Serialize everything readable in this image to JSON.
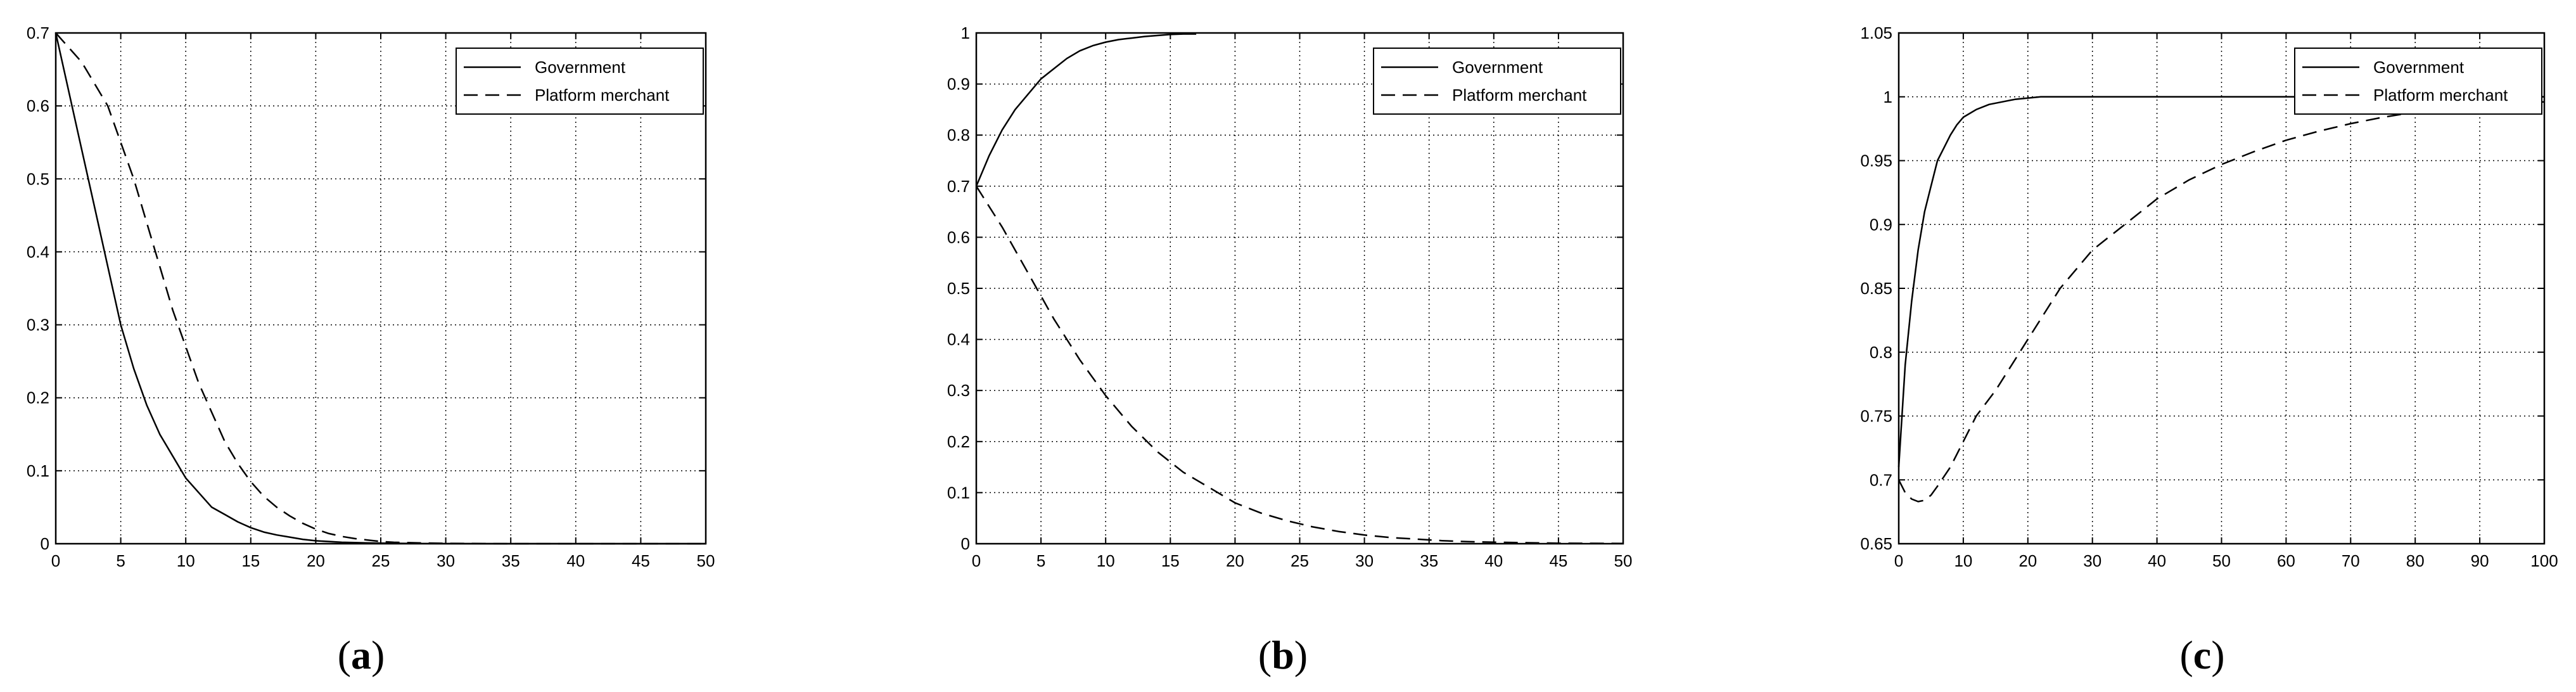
{
  "figure": {
    "panel_labels": [
      "a",
      "b",
      "c"
    ]
  },
  "chart_data": [
    {
      "type": "line",
      "panel": "a",
      "title": "",
      "xlabel": "",
      "ylabel": "",
      "xlim": [
        0,
        50
      ],
      "ylim": [
        0,
        0.7
      ],
      "xticks": [
        0,
        5,
        10,
        15,
        20,
        25,
        30,
        35,
        40,
        45,
        50
      ],
      "yticks": [
        0,
        0.1,
        0.2,
        0.3,
        0.4,
        0.5,
        0.6,
        0.7
      ],
      "xtick_labels": [
        "0",
        "5",
        "10",
        "15",
        "20",
        "25",
        "30",
        "35",
        "40",
        "45",
        "50"
      ],
      "ytick_labels": [
        "0",
        "0.1",
        "0.2",
        "0.3",
        "0.4",
        "0.5",
        "0.6",
        "0.7"
      ],
      "grid": true,
      "legend_position": "top-right",
      "series": [
        {
          "name": "Government",
          "style": "solid",
          "x": [
            0,
            1,
            2,
            3,
            4,
            5,
            6,
            7,
            8,
            9,
            10,
            11,
            12,
            13,
            14,
            15,
            16,
            17,
            18,
            19,
            20,
            22,
            24,
            26,
            28,
            30,
            35,
            40,
            45,
            50
          ],
          "y": [
            0.7,
            0.62,
            0.54,
            0.46,
            0.38,
            0.3,
            0.24,
            0.19,
            0.15,
            0.12,
            0.09,
            0.07,
            0.05,
            0.04,
            0.03,
            0.022,
            0.016,
            0.012,
            0.009,
            0.006,
            0.004,
            0.002,
            0.001,
            0.0005,
            0.0002,
            0.0001,
            0,
            0,
            0,
            0
          ]
        },
        {
          "name": "Platform merchant",
          "style": "dashed",
          "x": [
            0,
            1,
            2,
            3,
            4,
            5,
            6,
            7,
            8,
            9,
            10,
            11,
            12,
            13,
            14,
            15,
            16,
            17,
            18,
            19,
            20,
            21,
            22,
            23,
            24,
            25,
            26,
            28,
            30,
            35,
            40,
            45,
            50
          ],
          "y": [
            0.7,
            0.68,
            0.66,
            0.63,
            0.6,
            0.55,
            0.5,
            0.44,
            0.38,
            0.32,
            0.27,
            0.22,
            0.18,
            0.14,
            0.11,
            0.085,
            0.065,
            0.05,
            0.038,
            0.028,
            0.02,
            0.014,
            0.01,
            0.007,
            0.005,
            0.003,
            0.002,
            0.001,
            0.0005,
            0,
            0,
            0,
            0
          ]
        }
      ]
    },
    {
      "type": "line",
      "panel": "b",
      "title": "",
      "xlabel": "",
      "ylabel": "",
      "xlim": [
        0,
        50
      ],
      "ylim": [
        0,
        1
      ],
      "xticks": [
        0,
        5,
        10,
        15,
        20,
        25,
        30,
        35,
        40,
        45,
        50
      ],
      "yticks": [
        0,
        0.1,
        0.2,
        0.3,
        0.4,
        0.5,
        0.6,
        0.7,
        0.8,
        0.9,
        1
      ],
      "xtick_labels": [
        "0",
        "5",
        "10",
        "15",
        "20",
        "25",
        "30",
        "35",
        "40",
        "45",
        "50"
      ],
      "ytick_labels": [
        "0",
        "0.1",
        "0.2",
        "0.3",
        "0.4",
        "0.5",
        "0.6",
        "0.7",
        "0.8",
        "0.9",
        "1"
      ],
      "grid": true,
      "legend_position": "top-right",
      "series": [
        {
          "name": "Government",
          "style": "solid",
          "x": [
            0,
            1,
            2,
            3,
            4,
            5,
            6,
            7,
            8,
            9,
            10,
            11,
            12,
            13,
            14,
            15,
            16,
            17
          ],
          "y": [
            0.7,
            0.76,
            0.81,
            0.85,
            0.88,
            0.91,
            0.93,
            0.95,
            0.965,
            0.975,
            0.982,
            0.987,
            0.99,
            0.993,
            0.995,
            0.997,
            0.998,
            0.998
          ]
        },
        {
          "name": "Platform merchant",
          "style": "dashed",
          "x": [
            0,
            2,
            4,
            6,
            8,
            10,
            12,
            14,
            16,
            18,
            20,
            22,
            24,
            26,
            28,
            30,
            32,
            34,
            36,
            38,
            40,
            45,
            50
          ],
          "y": [
            0.7,
            0.62,
            0.53,
            0.44,
            0.36,
            0.29,
            0.23,
            0.18,
            0.14,
            0.11,
            0.08,
            0.06,
            0.045,
            0.033,
            0.024,
            0.017,
            0.012,
            0.009,
            0.006,
            0.004,
            0.003,
            0.001,
            0.0005
          ]
        }
      ]
    },
    {
      "type": "line",
      "panel": "c",
      "title": "",
      "xlabel": "",
      "ylabel": "",
      "xlim": [
        0,
        100
      ],
      "ylim": [
        0.65,
        1.05
      ],
      "xticks": [
        0,
        10,
        20,
        30,
        40,
        50,
        60,
        70,
        80,
        90,
        100
      ],
      "yticks": [
        0.65,
        0.7,
        0.75,
        0.8,
        0.85,
        0.9,
        0.95,
        1,
        1.05
      ],
      "xtick_labels": [
        "0",
        "10",
        "20",
        "30",
        "40",
        "50",
        "60",
        "70",
        "80",
        "90",
        "100"
      ],
      "ytick_labels": [
        "0.65",
        "0.7",
        "0.75",
        "0.8",
        "0.85",
        "0.9",
        "0.95",
        "1",
        "1.05"
      ],
      "grid": true,
      "legend_position": "top-right",
      "series": [
        {
          "name": "Government",
          "style": "solid",
          "x": [
            0,
            1,
            2,
            3,
            4,
            5,
            6,
            7,
            8,
            9,
            10,
            12,
            14,
            16,
            18,
            20,
            22,
            25,
            30,
            40,
            50,
            60,
            70,
            80,
            90,
            100
          ],
          "y": [
            0.71,
            0.79,
            0.84,
            0.88,
            0.91,
            0.93,
            0.95,
            0.96,
            0.97,
            0.978,
            0.984,
            0.99,
            0.994,
            0.996,
            0.998,
            0.999,
            1,
            1,
            1,
            1,
            1,
            1,
            1,
            1,
            1,
            1
          ]
        },
        {
          "name": "Platform merchant",
          "style": "dashed",
          "x": [
            0,
            1,
            2,
            3,
            4,
            5,
            6,
            8,
            10,
            12,
            15,
            20,
            25,
            30,
            35,
            40,
            45,
            50,
            55,
            60,
            65,
            70,
            75,
            80,
            85,
            90,
            95,
            100
          ],
          "y": [
            0.7,
            0.69,
            0.685,
            0.683,
            0.684,
            0.688,
            0.695,
            0.71,
            0.73,
            0.75,
            0.77,
            0.81,
            0.85,
            0.88,
            0.9,
            0.92,
            0.935,
            0.947,
            0.957,
            0.966,
            0.973,
            0.979,
            0.984,
            0.988,
            0.991,
            0.993,
            0.995,
            0.996
          ]
        }
      ]
    }
  ]
}
